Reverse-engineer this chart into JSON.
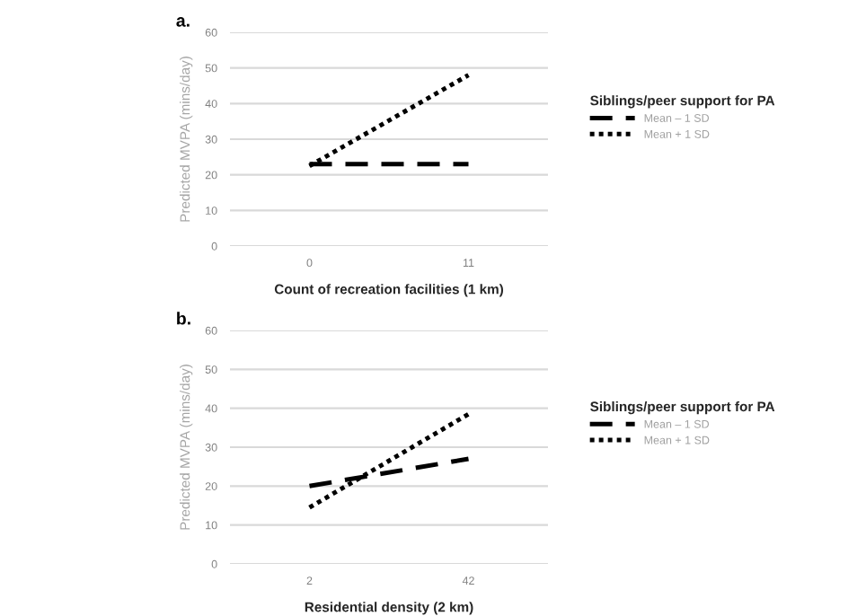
{
  "chart_data": [
    {
      "type": "line",
      "title": "a.",
      "xlabel": "Count of recreation facilities (1 km)",
      "ylabel": "Predicted MVPA (mins/day)",
      "legend_title": "Siblings/peer support for PA",
      "categories": [
        "0",
        "11"
      ],
      "series": [
        {
          "name": "Mean – 1 SD",
          "color": "#000000",
          "line_style": "dashed",
          "values": [
            23,
            23
          ]
        },
        {
          "name": "Mean + 1 SD",
          "color": "#000000",
          "line_style": "dotted",
          "values": [
            22.5,
            48
          ]
        }
      ],
      "ylim": [
        0,
        60
      ],
      "yticks": [
        0,
        10,
        20,
        30,
        40,
        50,
        60
      ],
      "grid": "y",
      "legend": "right",
      "marker": "none"
    },
    {
      "type": "line",
      "title": "b.",
      "xlabel": "Residential density (2 km)",
      "ylabel": "Predicted MVPA (mins/day)",
      "legend_title": "Siblings/peer support for PA",
      "categories": [
        "2",
        "42"
      ],
      "series": [
        {
          "name": "Mean – 1 SD",
          "color": "#000000",
          "line_style": "dashed",
          "values": [
            20,
            27
          ]
        },
        {
          "name": "Mean + 1 SD",
          "color": "#000000",
          "line_style": "dotted",
          "values": [
            14.5,
            38.5
          ]
        }
      ],
      "ylim": [
        0,
        60
      ],
      "yticks": [
        0,
        10,
        20,
        30,
        40,
        50,
        60
      ],
      "grid": "y",
      "legend": "right",
      "marker": "none"
    }
  ]
}
